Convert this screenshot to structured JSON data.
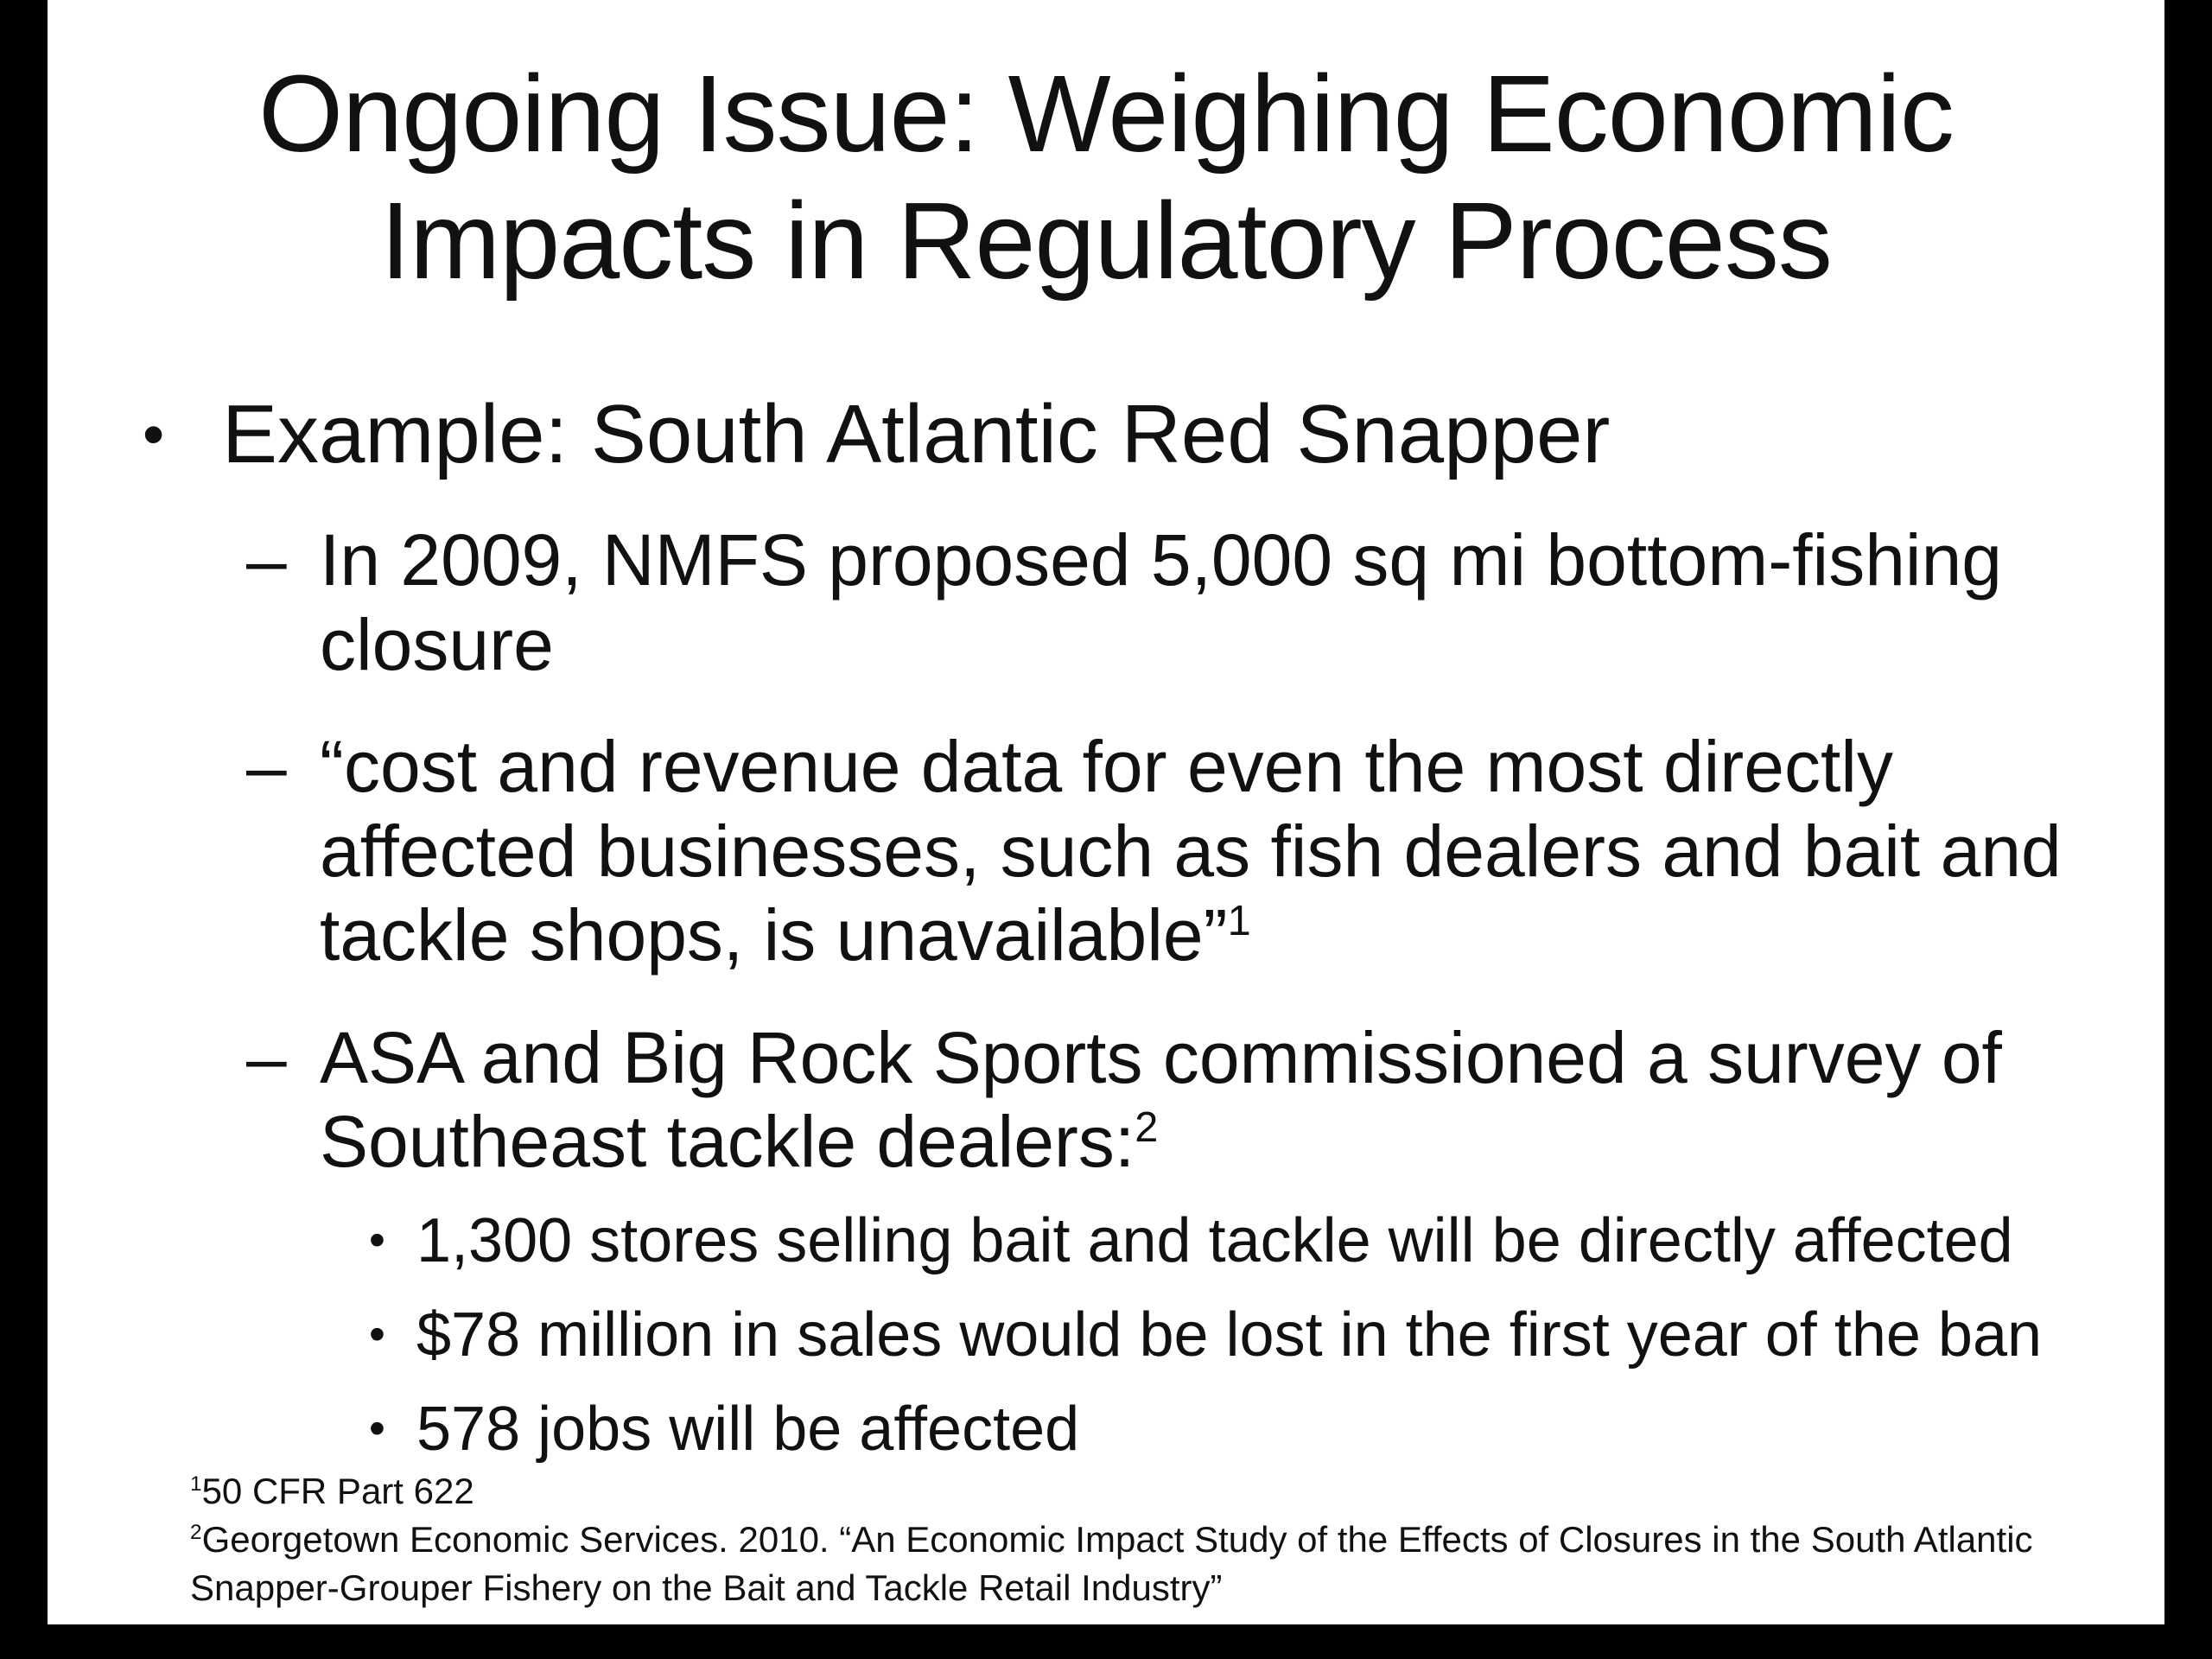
{
  "slide": {
    "title": "Ongoing Issue: Weighing Economic Impacts in Regulatory Process",
    "bullets": {
      "level1_glyph": "•",
      "level2_glyph": "–",
      "level3_glyph": "•"
    },
    "bullet1": "Example: South Atlantic Red Snapper",
    "sub_bullets": [
      {
        "text": "In 2009, NMFS proposed 5,000 sq mi bottom-fishing closure",
        "sup": ""
      },
      {
        "text": "“cost and revenue data for even the most directly affected businesses, such as fish dealers and bait and tackle shops, is unavailable”",
        "sup": "1"
      },
      {
        "text": "ASA and Big Rock Sports commissioned a survey of Southeast tackle dealers:",
        "sup": "2"
      }
    ],
    "stat_bullets": [
      "1,300 stores selling bait and tackle will be directly affected",
      "$78 million in sales would be lost in the first year of the ban",
      "578 jobs will be affected"
    ],
    "footnotes": [
      {
        "sup": "1",
        "text": "50 CFR Part 622"
      },
      {
        "sup": "2",
        "text": "Georgetown Economic Services. 2010. “An Economic Impact Study of the Effects of Closures in the South Atlantic Snapper-Grouper Fishery on the Bait and Tackle Retail Industry”"
      }
    ],
    "colors": {
      "text": "#111111",
      "slide_background": "#ffffff",
      "frame": "#000000"
    }
  }
}
